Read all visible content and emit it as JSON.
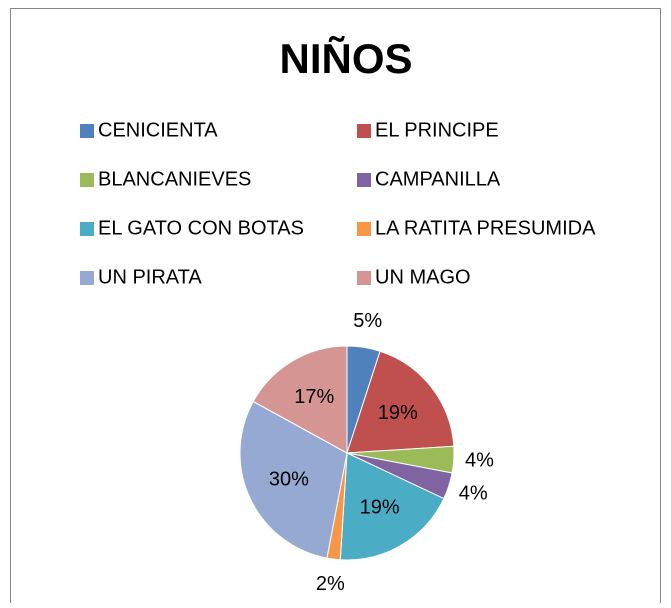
{
  "chart_data": {
    "type": "pie",
    "title": "NIÑOS",
    "categories": [
      "CENICIENTA",
      "EL PRINCIPE",
      "BLANCANIEVES",
      "CAMPANILLA",
      "EL GATO CON BOTAS",
      "LA RATITA PRESUMIDA",
      "UN PIRATA",
      "UN MAGO"
    ],
    "values": [
      5,
      19,
      4,
      4,
      19,
      2,
      30,
      17
    ],
    "value_labels": [
      "5%",
      "19%",
      "4%",
      "4%",
      "19%",
      "2%",
      "30%",
      "17%"
    ],
    "colors": [
      "#4F81BD",
      "#C0504D",
      "#9BBB59",
      "#8064A2",
      "#4BACC6",
      "#F79646",
      "#95A9D3",
      "#D59593"
    ]
  }
}
